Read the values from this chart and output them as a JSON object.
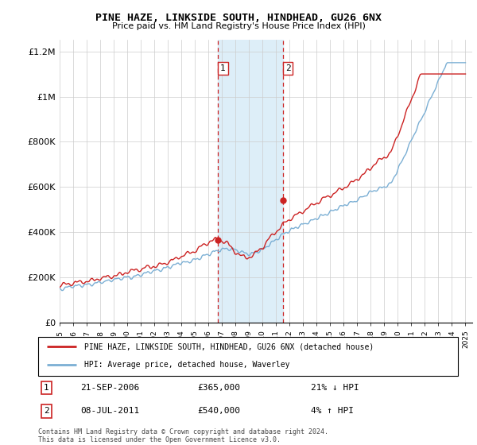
{
  "title": "PINE HAZE, LINKSIDE SOUTH, HINDHEAD, GU26 6NX",
  "subtitle": "Price paid vs. HM Land Registry's House Price Index (HPI)",
  "legend_line1": "PINE HAZE, LINKSIDE SOUTH, HINDHEAD, GU26 6NX (detached house)",
  "legend_line2": "HPI: Average price, detached house, Waverley",
  "sale1_date": "21-SEP-2006",
  "sale1_price": "£365,000",
  "sale1_hpi": "21% ↓ HPI",
  "sale2_date": "08-JUL-2011",
  "sale2_price": "£540,000",
  "sale2_hpi": "4% ↑ HPI",
  "footnote": "Contains HM Land Registry data © Crown copyright and database right 2024.\nThis data is licensed under the Open Government Licence v3.0.",
  "hpi_color": "#7bafd4",
  "price_color": "#cc2222",
  "highlight_color": "#ddeef8",
  "dashed_line_color": "#cc2222",
  "ylim": [
    0,
    1250000
  ],
  "yticks": [
    0,
    200000,
    400000,
    600000,
    800000,
    1000000,
    1200000
  ],
  "ytick_labels": [
    "£0",
    "£200K",
    "£400K",
    "£600K",
    "£800K",
    "£1M",
    "£1.2M"
  ],
  "sale1_year": 2006.72,
  "sale2_year": 2011.52,
  "sale1_price_val": 365000,
  "sale2_price_val": 540000
}
